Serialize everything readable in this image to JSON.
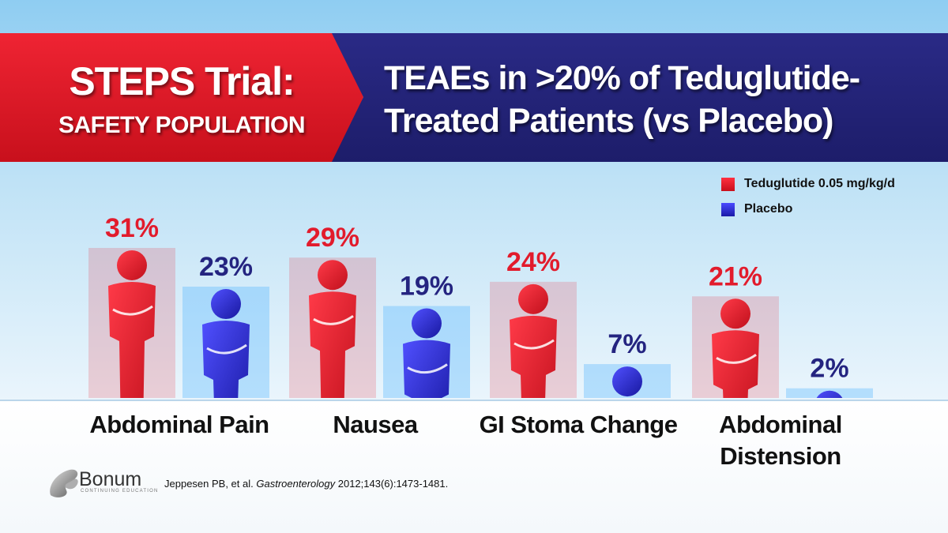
{
  "header": {
    "title_line1": "STEPS Trial:",
    "title_line2": "SAFETY POPULATION",
    "subtitle_line1": "TEAEs in >20% of Teduglutide-",
    "subtitle_line2": "Treated Patients (vs Placebo)"
  },
  "colors": {
    "teduglutide": "#e8192c",
    "placebo": "#2222cc",
    "banner_red": "#d91a26",
    "banner_blue": "#22227a"
  },
  "legend": [
    "Teduglutide 0.05 mg/kg/d",
    "Placebo"
  ],
  "chart_data": {
    "type": "bar",
    "title": "TEAEs in >20% of Teduglutide-Treated Patients (vs Placebo)",
    "categories": [
      "Abdominal Pain",
      "Nausea",
      "GI Stoma Change",
      "Abdominal Distension"
    ],
    "category_lines": [
      [
        "Abdominal Pain"
      ],
      [
        "Nausea"
      ],
      [
        "GI Stoma Change"
      ],
      [
        "Abdominal",
        "Distension"
      ]
    ],
    "series": [
      {
        "name": "Teduglutide 0.05 mg/kg/d",
        "values": [
          31,
          29,
          24,
          21
        ],
        "labels": [
          "31%",
          "29%",
          "24%",
          "21%"
        ]
      },
      {
        "name": "Placebo",
        "values": [
          23,
          19,
          7,
          2
        ],
        "labels": [
          "23%",
          "19%",
          "7%",
          "2%"
        ]
      }
    ],
    "unit": "%",
    "legend_position": "top-right",
    "grid": false
  },
  "footer": {
    "logo_name": "Bonum",
    "logo_sub": "CONTINUING EDUCATION",
    "citation_authors": "Jeppesen PB, et al.",
    "citation_journal": "Gastroenterology",
    "citation_rest": "2012;143(6):1473-1481."
  }
}
